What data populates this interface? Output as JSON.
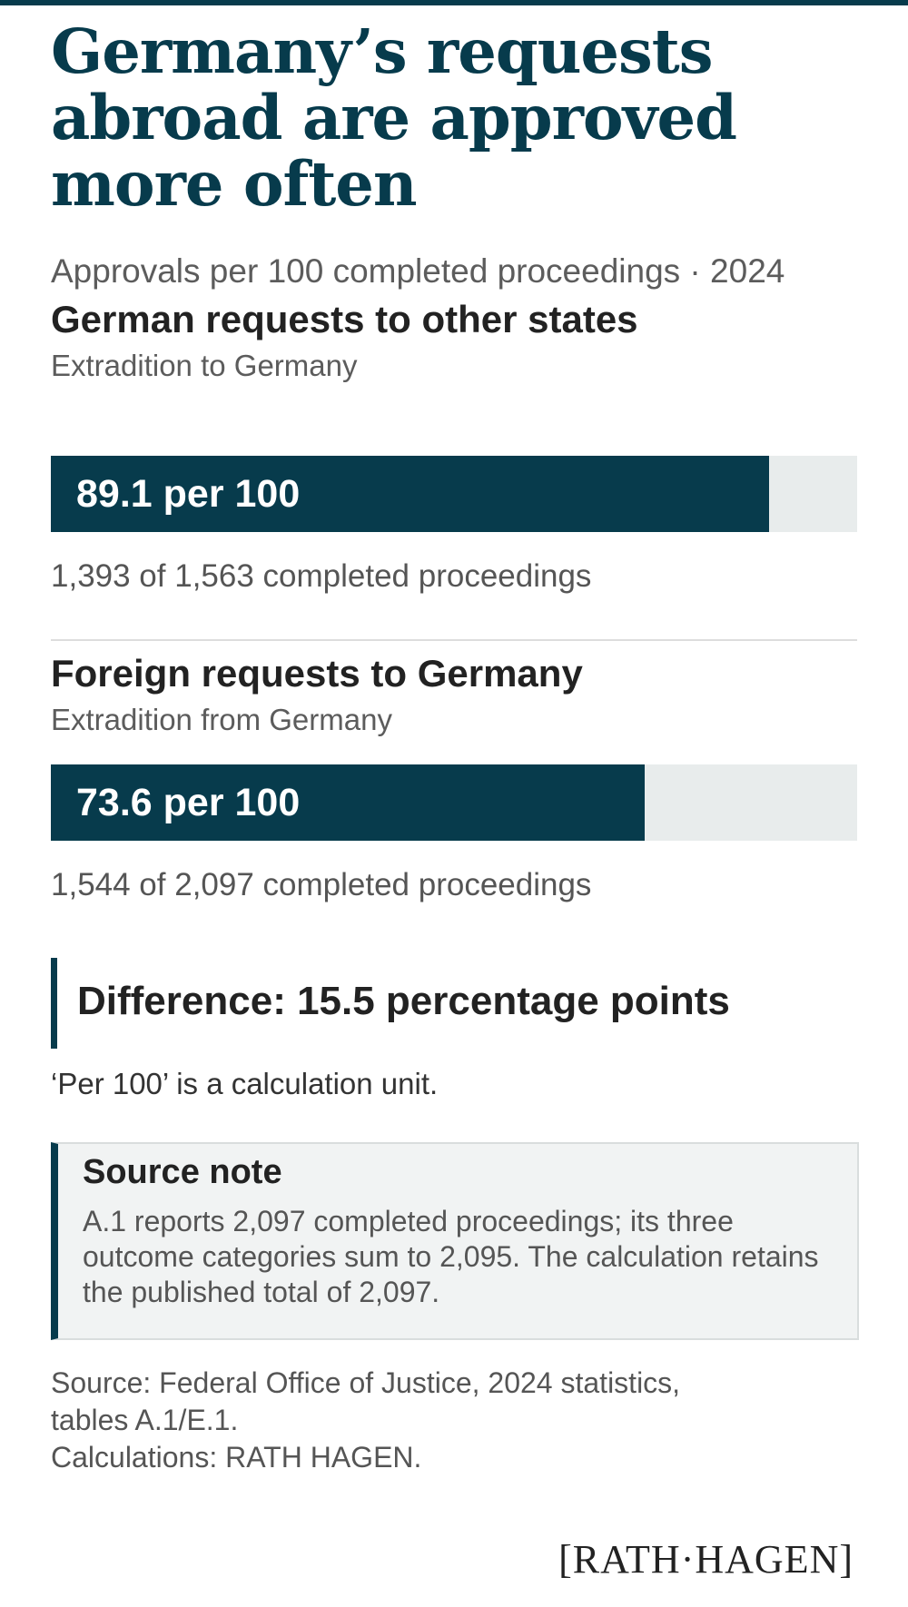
{
  "title": "Germany’s requests abroad are approved more often",
  "subtitle": "Approvals per 100 completed proceedings · 2024",
  "chart_data": {
    "type": "bar",
    "orientation": "horizontal",
    "title": "Germany’s requests abroad are approved more often",
    "subtitle": "Approvals per 100 completed proceedings · 2024",
    "unit": "per 100",
    "xlim": [
      0,
      100
    ],
    "bars": [
      {
        "heading": "German requests to other states",
        "subheading": "Extradition to Germany",
        "value": 89.1,
        "value_label": "89.1 per 100",
        "approved": 1393,
        "completed": 1563,
        "count_label": "1,393 of 1,563 completed proceedings"
      },
      {
        "heading": "Foreign requests to Germany",
        "subheading": "Extradition from Germany",
        "value": 73.6,
        "value_label": "73.6 per 100",
        "approved": 1544,
        "completed": 2097,
        "count_label": "1,544 of 2,097 completed proceedings"
      }
    ],
    "difference_label": "Difference: 15.5 percentage points"
  },
  "unit_note": "‘Per 100’ is a calculation unit.",
  "source_note": {
    "title": "Source note",
    "body": "A.1 reports 2,097 completed proceedings; its three outcome categories sum to 2,095. The calculation retains the published total of 2,097."
  },
  "source": {
    "line1": "Source: Federal Office of Justice, 2024 statistics,",
    "line2": "tables A.1/E.1.",
    "line3": "Calculations: RATH HAGEN."
  },
  "logo": "[RATH·HAGEN]",
  "colors": {
    "accent": "#073b4c",
    "track": "#e8ecec"
  }
}
